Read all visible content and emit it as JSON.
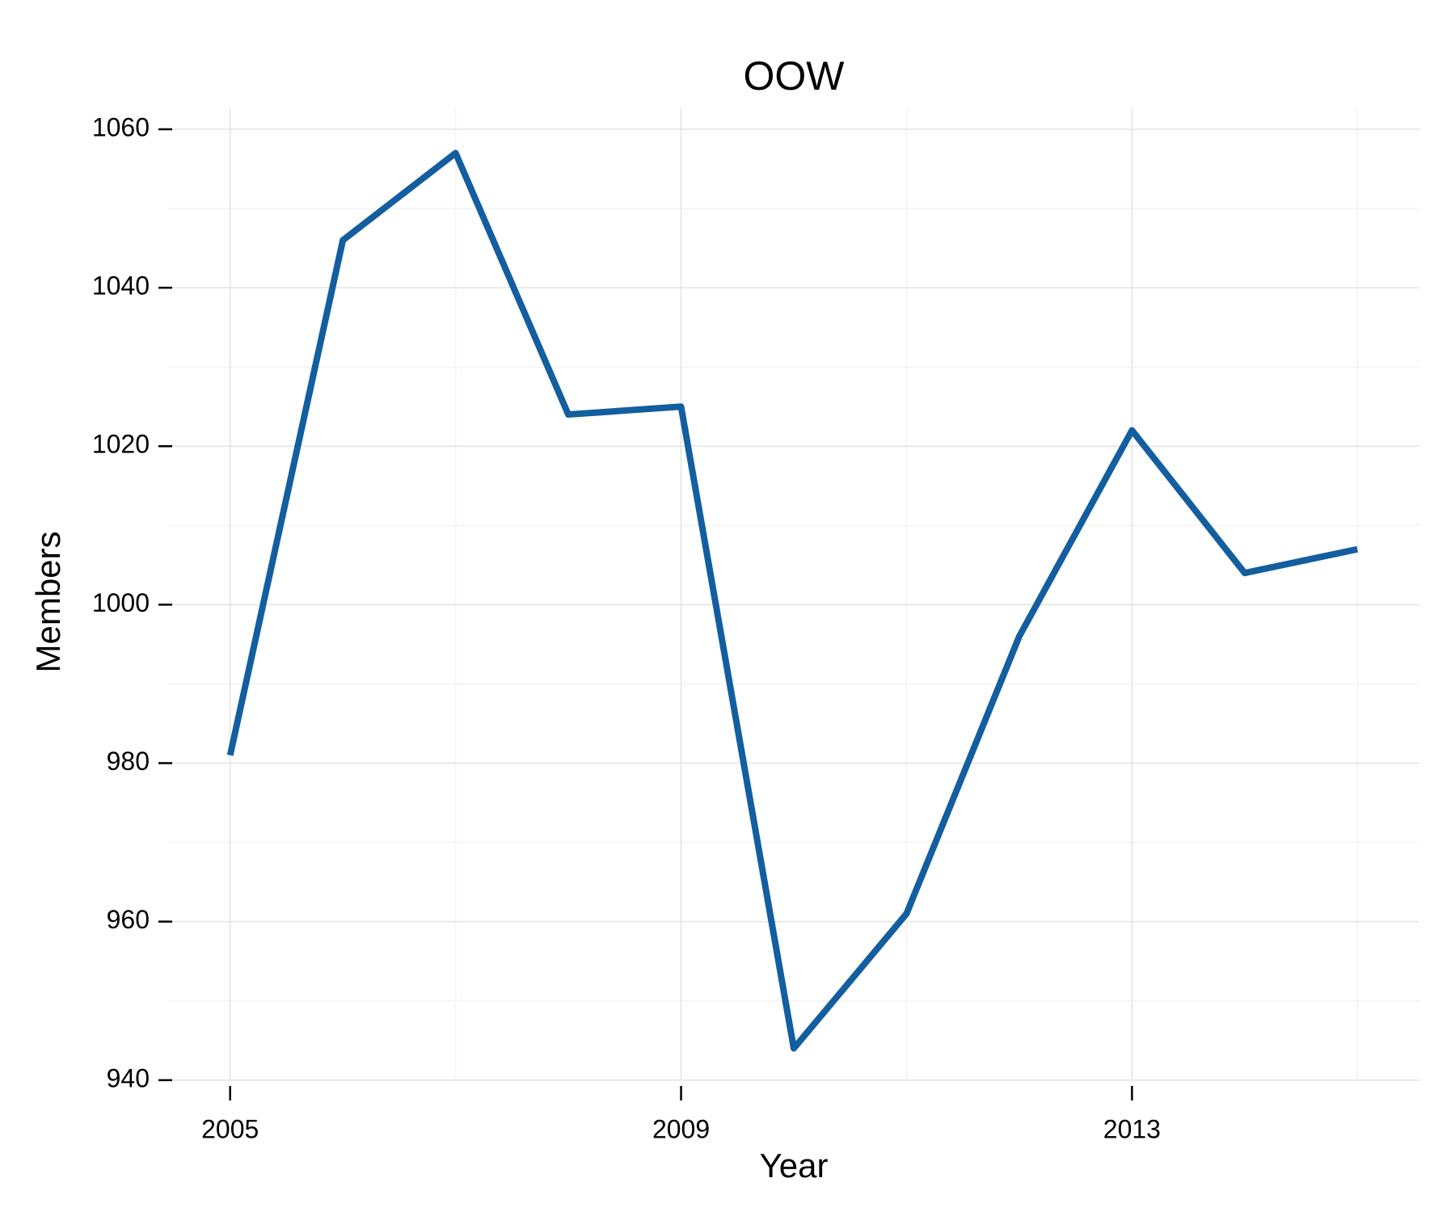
{
  "chart_data": {
    "type": "line",
    "title": "OOW",
    "x_label": "Year",
    "y_label": "Members",
    "x": [
      2005,
      2006,
      2007,
      2008,
      2009,
      2010,
      2011,
      2012,
      2013,
      2014,
      2015
    ],
    "series": [
      {
        "name": "OOW",
        "color": "#135e9f",
        "values": [
          981,
          1046,
          1057,
          1024,
          1025,
          944,
          961,
          996,
          1022,
          1004,
          1007
        ]
      }
    ],
    "xlim": [
      2004.45,
      2015.55
    ],
    "xticks": [
      2005,
      2009,
      2013
    ],
    "ylim": [
      938.35,
      1062.65
    ],
    "yticks": [
      940,
      960,
      980,
      1000,
      1020,
      1040,
      1060
    ],
    "grid": true
  }
}
